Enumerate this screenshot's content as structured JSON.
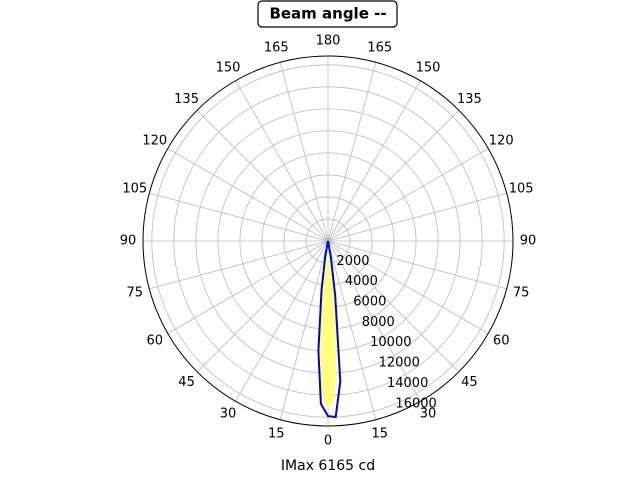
{
  "chart_data": {
    "type": "polar",
    "title": "Beam angle --",
    "xlabel": "IMax 6165 cd",
    "ylim": [
      0,
      16800
    ],
    "yticks": [
      2000,
      4000,
      6000,
      8000,
      10000,
      12000,
      14000,
      16000
    ],
    "thetaticks": [
      0,
      15,
      30,
      45,
      60,
      75,
      90,
      105,
      120,
      135,
      150,
      165,
      180,
      {
        "value": 195,
        "label": "165"
      },
      {
        "value": 210,
        "label": "150"
      },
      {
        "value": 225,
        "label": "135"
      },
      {
        "value": 240,
        "label": "120"
      },
      {
        "value": 255,
        "label": "105"
      },
      {
        "value": 270,
        "label": "90"
      },
      {
        "value": 285,
        "label": "75"
      },
      {
        "value": 300,
        "label": "60"
      },
      {
        "value": 315,
        "label": "45"
      },
      {
        "value": 330,
        "label": "30"
      },
      {
        "value": 345,
        "label": "15"
      }
    ],
    "grid": true,
    "series": [
      {
        "color": "#ffff80",
        "fill": true,
        "theta": [
          -12,
          -7.5,
          -5,
          -2.5,
          0,
          2.5,
          5,
          7.5,
          12
        ],
        "values": [
          0,
          3500,
          9000,
          14000,
          15200,
          14500,
          9500,
          3500,
          0
        ]
      },
      {
        "color": "#0000dd",
        "fill": false,
        "theta": [
          -15,
          -10,
          -7.5,
          -5,
          -2.5,
          0,
          2.5,
          5,
          7.5,
          10,
          15
        ],
        "values": [
          0,
          1500,
          4500,
          10000,
          14800,
          15900,
          16000,
          12800,
          5000,
          1500,
          0
        ]
      }
    ]
  }
}
